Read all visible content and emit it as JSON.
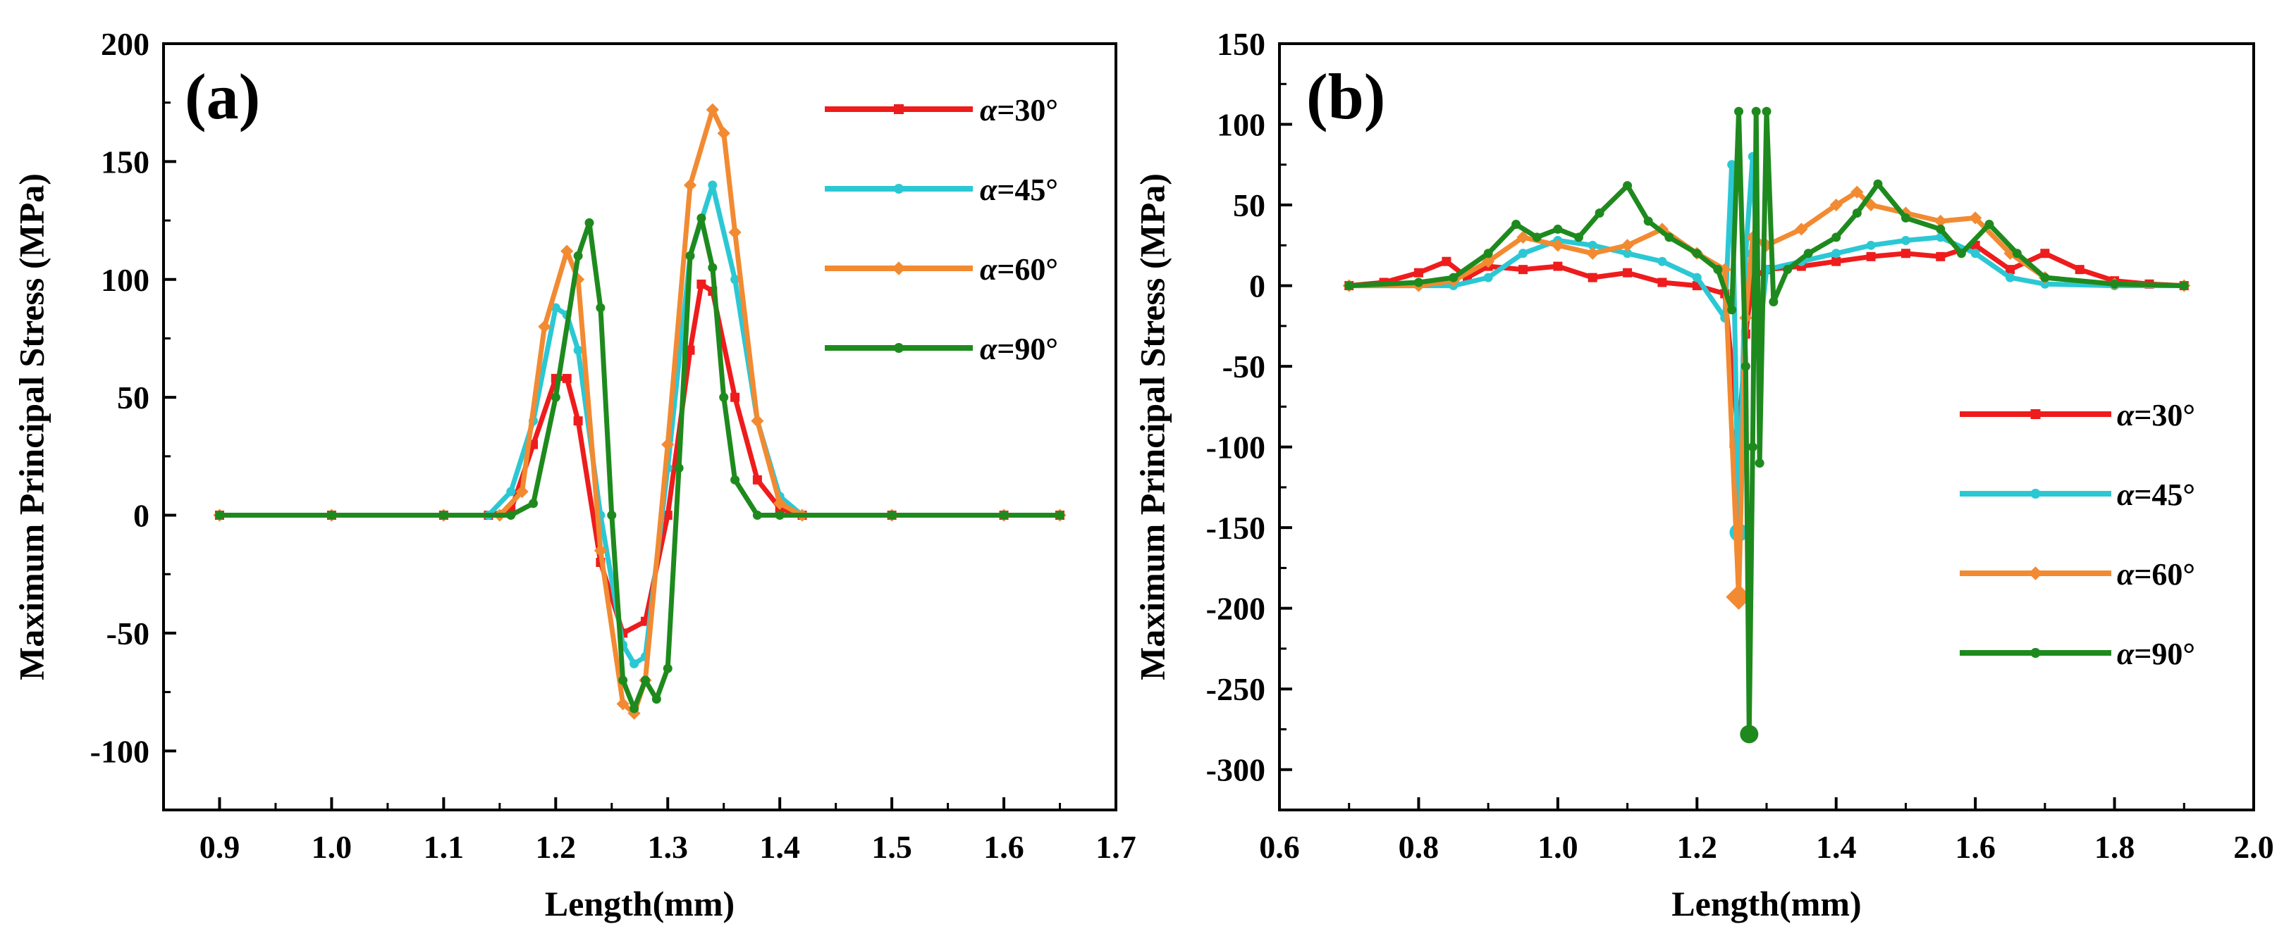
{
  "chart_data": [
    {
      "type": "line",
      "panel_label": "(a)",
      "xlabel": "Length(mm)",
      "ylabel": "Maximum Principal Stress (MPa)",
      "xlim": [
        0.85,
        1.7
      ],
      "ylim": [
        -125,
        200
      ],
      "xticks": [
        0.9,
        1.0,
        1.1,
        1.2,
        1.3,
        1.4,
        1.5,
        1.6,
        1.7
      ],
      "xtick_labels": [
        "0.9",
        "1.0",
        "1.1",
        "1.2",
        "1.3",
        "1.4",
        "1.5",
        "1.6",
        "1.7"
      ],
      "yticks": [
        -100,
        -50,
        0,
        50,
        100,
        150,
        200
      ],
      "ytick_labels": [
        "-100",
        "-50",
        "0",
        "50",
        "100",
        "150",
        "200"
      ],
      "legend_position": "top-right",
      "grid": false,
      "series": [
        {
          "name": "α=30°",
          "label_alpha": "α",
          "label_rest": "=30°",
          "color": "#ee1c1c",
          "marker": "square",
          "x": [
            0.9,
            1.0,
            1.1,
            1.14,
            1.16,
            1.18,
            1.2,
            1.21,
            1.22,
            1.24,
            1.26,
            1.28,
            1.3,
            1.32,
            1.33,
            1.34,
            1.36,
            1.38,
            1.4,
            1.42,
            1.5,
            1.6,
            1.65
          ],
          "y": [
            0,
            0,
            0,
            0,
            2,
            30,
            58,
            58,
            40,
            -20,
            -50,
            -45,
            0,
            70,
            98,
            95,
            50,
            15,
            3,
            0,
            0,
            0,
            0
          ]
        },
        {
          "name": "α=45°",
          "label_alpha": "α",
          "label_rest": "=45°",
          "color": "#2bc8d4",
          "marker": "circle",
          "x": [
            0.9,
            1.0,
            1.1,
            1.14,
            1.16,
            1.18,
            1.2,
            1.21,
            1.22,
            1.24,
            1.26,
            1.27,
            1.28,
            1.3,
            1.32,
            1.34,
            1.36,
            1.38,
            1.4,
            1.42,
            1.5,
            1.6,
            1.65
          ],
          "y": [
            0,
            0,
            0,
            0,
            10,
            40,
            88,
            85,
            70,
            0,
            -55,
            -63,
            -60,
            20,
            110,
            140,
            100,
            40,
            8,
            0,
            0,
            0,
            0
          ]
        },
        {
          "name": "α=60°",
          "label_alpha": "α",
          "label_rest": "=60°",
          "color": "#f28a32",
          "marker": "diamond",
          "x": [
            0.9,
            1.0,
            1.1,
            1.15,
            1.17,
            1.19,
            1.21,
            1.22,
            1.24,
            1.26,
            1.27,
            1.28,
            1.3,
            1.32,
            1.34,
            1.35,
            1.36,
            1.38,
            1.4,
            1.42,
            1.5,
            1.6,
            1.65
          ],
          "y": [
            0,
            0,
            0,
            0,
            10,
            80,
            112,
            100,
            -15,
            -80,
            -84,
            -70,
            30,
            140,
            172,
            162,
            120,
            40,
            5,
            0,
            0,
            0,
            0
          ]
        },
        {
          "name": "α=90°",
          "label_alpha": "α",
          "label_rest": "=90°",
          "color": "#1e8a1e",
          "marker": "circle",
          "x": [
            0.9,
            1.0,
            1.1,
            1.16,
            1.18,
            1.2,
            1.22,
            1.23,
            1.24,
            1.25,
            1.26,
            1.27,
            1.28,
            1.29,
            1.3,
            1.31,
            1.32,
            1.33,
            1.34,
            1.35,
            1.36,
            1.38,
            1.4,
            1.5,
            1.6,
            1.65
          ],
          "y": [
            0,
            0,
            0,
            0,
            5,
            50,
            110,
            124,
            88,
            0,
            -70,
            -82,
            -70,
            -78,
            -65,
            20,
            110,
            126,
            105,
            50,
            15,
            0,
            0,
            0,
            0,
            0
          ]
        }
      ]
    },
    {
      "type": "line",
      "panel_label": "(b)",
      "xlabel": "Length(mm)",
      "ylabel": "Maximum Principal Stress (MPa)",
      "xlim": [
        0.6,
        2.0
      ],
      "ylim": [
        -325,
        150
      ],
      "xticks": [
        0.6,
        0.8,
        1.0,
        1.2,
        1.4,
        1.6,
        1.8,
        2.0
      ],
      "xtick_labels": [
        "0.6",
        "0.8",
        "1.0",
        "1.2",
        "1.4",
        "1.6",
        "1.8",
        "2.0"
      ],
      "yticks": [
        -300,
        -250,
        -200,
        -150,
        -100,
        -50,
        0,
        50,
        100,
        150
      ],
      "ytick_labels": [
        "-300",
        "-250",
        "-200",
        "-150",
        "-100",
        "-50",
        "0",
        "50",
        "100",
        "150"
      ],
      "legend_position": "bottom-right",
      "grid": false,
      "series": [
        {
          "name": "α=30°",
          "label_alpha": "α",
          "label_rest": "=30°",
          "color": "#ee1c1c",
          "marker": "square",
          "x": [
            0.7,
            0.75,
            0.8,
            0.84,
            0.87,
            0.9,
            0.95,
            1.0,
            1.05,
            1.1,
            1.15,
            1.2,
            1.24,
            1.26,
            1.27,
            1.28,
            1.3,
            1.35,
            1.4,
            1.45,
            1.5,
            1.55,
            1.6,
            1.65,
            1.7,
            1.75,
            1.8,
            1.85,
            1.9
          ],
          "y": [
            0,
            2,
            8,
            15,
            5,
            12,
            10,
            12,
            5,
            8,
            2,
            0,
            -5,
            -95,
            -30,
            5,
            10,
            12,
            15,
            18,
            20,
            18,
            25,
            10,
            20,
            10,
            3,
            1,
            0
          ]
        },
        {
          "name": "α=45°",
          "label_alpha": "α",
          "label_rest": "=45°",
          "color": "#2bc8d4",
          "marker": "circle",
          "x": [
            0.7,
            0.8,
            0.85,
            0.9,
            0.95,
            1.0,
            1.05,
            1.1,
            1.15,
            1.2,
            1.24,
            1.25,
            1.26,
            1.27,
            1.28,
            1.29,
            1.3,
            1.35,
            1.4,
            1.45,
            1.5,
            1.55,
            1.6,
            1.65,
            1.7,
            1.8,
            1.9
          ],
          "y": [
            0,
            0,
            0,
            5,
            20,
            28,
            25,
            20,
            15,
            5,
            -20,
            75,
            -153,
            20,
            80,
            -30,
            10,
            15,
            20,
            25,
            28,
            30,
            20,
            5,
            1,
            0,
            0
          ]
        },
        {
          "name": "α=60°",
          "label_alpha": "α",
          "label_rest": "=60°",
          "color": "#f28a32",
          "marker": "diamond",
          "x": [
            0.7,
            0.8,
            0.85,
            0.9,
            0.95,
            1.0,
            1.05,
            1.1,
            1.15,
            1.2,
            1.24,
            1.26,
            1.27,
            1.28,
            1.3,
            1.35,
            1.4,
            1.43,
            1.45,
            1.5,
            1.55,
            1.6,
            1.65,
            1.7,
            1.8,
            1.9
          ],
          "y": [
            0,
            0,
            3,
            15,
            30,
            25,
            20,
            25,
            35,
            20,
            10,
            -193,
            -20,
            30,
            25,
            35,
            50,
            58,
            50,
            45,
            40,
            42,
            20,
            5,
            1,
            0
          ]
        },
        {
          "name": "α=90°",
          "label_alpha": "α",
          "label_rest": "=90°",
          "color": "#1e8a1e",
          "marker": "circle",
          "x": [
            0.7,
            0.8,
            0.85,
            0.9,
            0.94,
            0.97,
            1.0,
            1.03,
            1.06,
            1.1,
            1.13,
            1.16,
            1.2,
            1.23,
            1.25,
            1.26,
            1.27,
            1.275,
            1.28,
            1.285,
            1.29,
            1.3,
            1.31,
            1.33,
            1.36,
            1.4,
            1.43,
            1.46,
            1.5,
            1.55,
            1.58,
            1.62,
            1.66,
            1.7,
            1.8,
            1.9
          ],
          "y": [
            0,
            2,
            5,
            20,
            38,
            30,
            35,
            30,
            45,
            62,
            40,
            30,
            20,
            10,
            -15,
            108,
            -50,
            -278,
            -100,
            108,
            -110,
            108,
            -10,
            10,
            20,
            30,
            45,
            63,
            42,
            35,
            20,
            38,
            20,
            5,
            1,
            0
          ]
        }
      ]
    }
  ]
}
